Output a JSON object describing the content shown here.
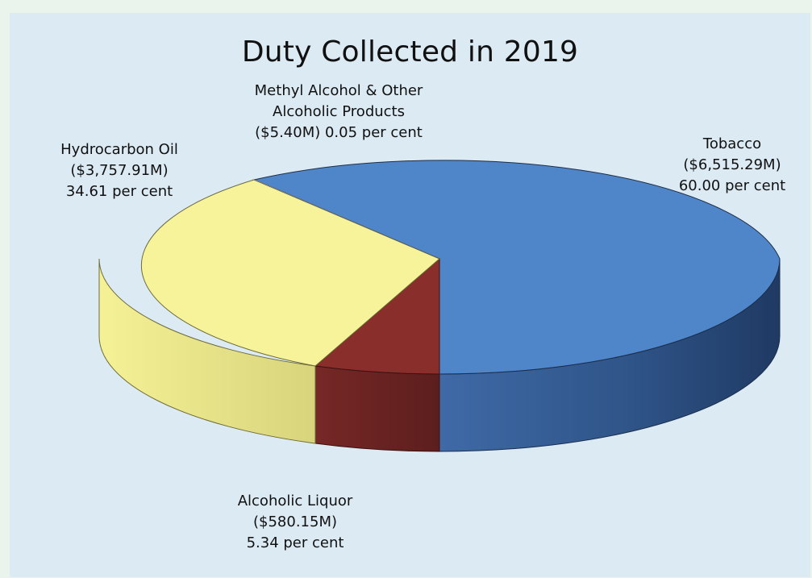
{
  "chart_data": {
    "type": "pie",
    "title": "Duty Collected  in 2019",
    "three_d": true,
    "slices": [
      {
        "name": "Tobacco",
        "value_label": "($6,515.29M)",
        "percent_label": "60.00 per cent",
        "value_millions": 6515.29,
        "percent": 60.0,
        "color": "#4f86c9"
      },
      {
        "name": "Alcoholic Liquor",
        "value_label": "($580.15M)",
        "percent_label": "5.34 per cent",
        "value_millions": 580.15,
        "percent": 5.34,
        "color": "#8a2e2b"
      },
      {
        "name": "Hydrocarbon Oil",
        "value_label": "($3,757.91M)",
        "percent_label": "34.61 per cent",
        "value_millions": 3757.91,
        "percent": 34.61,
        "color": "#f6f39a"
      },
      {
        "name": "Methyl Alcohol & Other Alcoholic Products",
        "value_label": "($5.40M)",
        "percent_label": "0.05 per cent",
        "value_millions": 5.4,
        "percent": 0.05,
        "color": "#c9c9c9"
      }
    ]
  },
  "labels": {
    "tobacco": {
      "line1": "Tobacco",
      "line2": "($6,515.29M)",
      "line3": "60.00 per cent"
    },
    "hydrocarbon": {
      "line1": "Hydrocarbon Oil",
      "line2": "($3,757.91M)",
      "line3": "34.61 per cent"
    },
    "methyl": {
      "line1": "Methyl Alcohol & Other",
      "line2": "Alcoholic Products",
      "line3": "($5.40M) 0.05 per cent"
    },
    "liquor": {
      "line1": "Alcoholic Liquor",
      "line2": "($580.15M)",
      "line3": "5.34 per cent"
    }
  }
}
